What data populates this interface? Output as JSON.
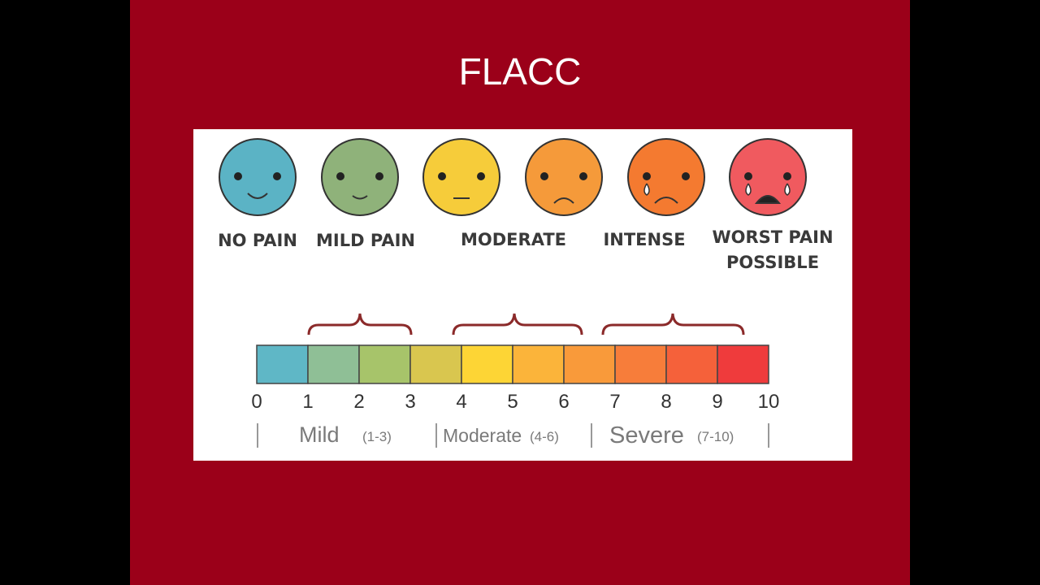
{
  "title": "FLACC",
  "faces": [
    {
      "label": "NO PAIN"
    },
    {
      "label": "MILD PAIN"
    },
    {
      "label": "MODERATE"
    },
    {
      "label": "INTENSE"
    },
    {
      "label": "WORST PAIN POSSIBLE"
    }
  ],
  "scale": {
    "ticks": [
      0,
      1,
      2,
      3,
      4,
      5,
      6,
      7,
      8,
      9,
      10
    ]
  },
  "ranges": [
    {
      "name": "Mild",
      "span": "(1-3)"
    },
    {
      "name": "Moderate",
      "span": "(4-6)"
    },
    {
      "name": "Severe",
      "span": "(7-10)"
    }
  ]
}
